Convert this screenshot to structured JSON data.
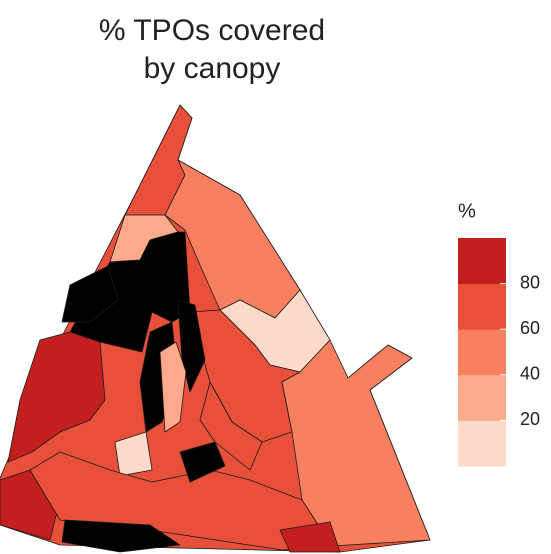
{
  "title": [
    "% TPOs covered",
    "by canopy"
  ],
  "legend": {
    "title": "%",
    "lim": [
      0,
      100
    ],
    "ticks": [
      20,
      40,
      60,
      80
    ],
    "colors": [
      "#fdd9c9",
      "#fcaa8b",
      "#f88060",
      "#e8503a",
      "#c41f1f"
    ],
    "na_color": "#000000"
  },
  "regions": [
    {
      "value": 65
    },
    {
      "value": 65
    },
    {
      "value": 50
    },
    {
      "value": 30
    },
    {
      "value": 15
    },
    {
      "value": null
    },
    {
      "value": 85
    },
    {
      "value": null
    },
    {
      "value": 65
    },
    {
      "value": 55
    },
    {
      "value": 10
    },
    {
      "value": null
    },
    {
      "value": 30
    },
    {
      "value": 85
    },
    {
      "value": 65
    },
    {
      "value": null
    },
    {
      "value": null
    },
    {
      "value": 85
    },
    {
      "value": 70
    },
    {
      "value": null
    }
  ]
}
